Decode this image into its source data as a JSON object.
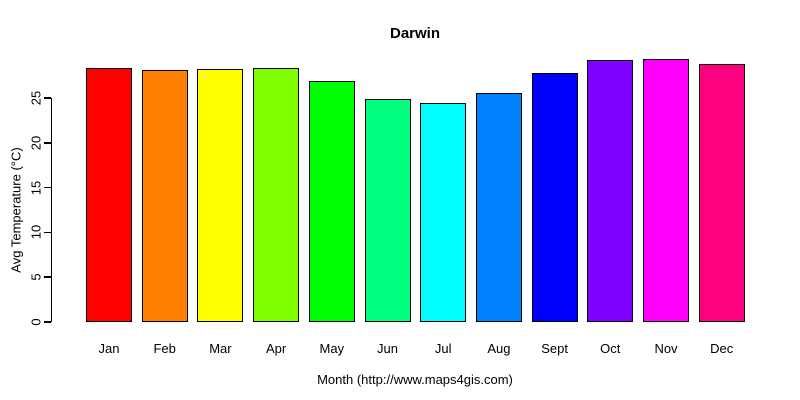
{
  "chart_data": {
    "type": "bar",
    "title": "Darwin",
    "xlabel": "Month (http://www.maps4gis.com)",
    "ylabel": "Avg Temperature (°C)",
    "categories": [
      "Jan",
      "Feb",
      "Mar",
      "Apr",
      "May",
      "Jun",
      "Jul",
      "Aug",
      "Sept",
      "Oct",
      "Nov",
      "Dec"
    ],
    "values": [
      28.3,
      28.1,
      28.2,
      28.3,
      26.9,
      24.9,
      24.4,
      25.6,
      27.8,
      29.2,
      29.4,
      28.8
    ],
    "colors": [
      "#FF0000",
      "#FF8000",
      "#FFFF00",
      "#80FF00",
      "#00FF00",
      "#00FF80",
      "#00FFFF",
      "#0080FF",
      "#0000FF",
      "#8000FF",
      "#FF00FF",
      "#FF0080"
    ],
    "bar_border_color": "#000000",
    "yticks": [
      0,
      5,
      10,
      15,
      20,
      25
    ],
    "ylim": [
      0,
      29.4
    ],
    "grid": false,
    "legend": null,
    "background": "#FFFFFF",
    "text_color": "#000000"
  }
}
